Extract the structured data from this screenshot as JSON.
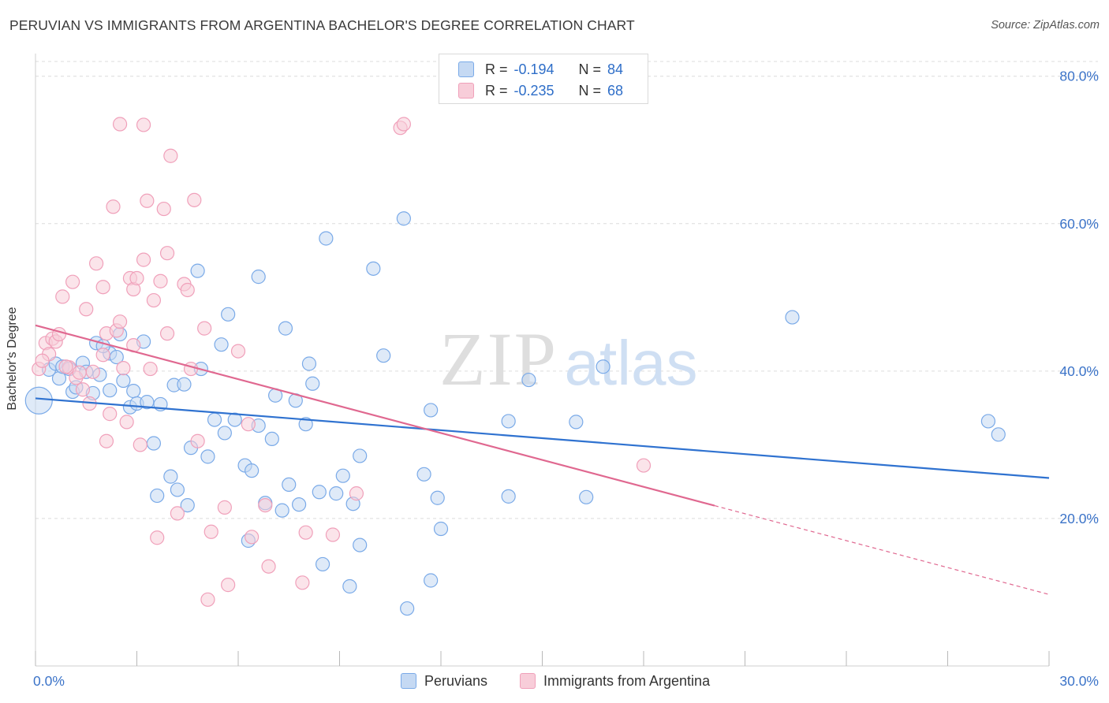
{
  "header": {
    "title": "PERUVIAN VS IMMIGRANTS FROM ARGENTINA BACHELOR'S DEGREE CORRELATION CHART",
    "source": "Source: ZipAtlas.com"
  },
  "watermark": {
    "zip": "ZIP",
    "atlas": "atlas"
  },
  "legend": {
    "rows": [
      {
        "r_label": "R =",
        "r_value": "-0.194",
        "n_label": "N =",
        "n_value": "84"
      },
      {
        "r_label": "R =",
        "r_value": "-0.235",
        "n_label": "N =",
        "n_value": "68"
      }
    ]
  },
  "chart_data": {
    "type": "scatter",
    "title": "PERUVIAN VS IMMIGRANTS FROM ARGENTINA BACHELOR'S DEGREE CORRELATION CHART",
    "xlabel": "",
    "ylabel": "Bachelor's Degree",
    "xlim": [
      0,
      30
    ],
    "ylim": [
      0,
      82
    ],
    "x_ticks": [
      0,
      3,
      6,
      9,
      12,
      15,
      18,
      21,
      24,
      27,
      30
    ],
    "x_tick_labels": [
      {
        "value": 0,
        "label": "0.0%"
      },
      {
        "value": 30,
        "label": "30.0%"
      }
    ],
    "y_ticks": [
      {
        "value": 20,
        "label": "20.0%"
      },
      {
        "value": 40,
        "label": "40.0%"
      },
      {
        "value": 60,
        "label": "60.0%"
      },
      {
        "value": 80,
        "label": "80.0%"
      }
    ],
    "grid": true,
    "series": [
      {
        "name": "Peruvians",
        "color": "#7aaae8",
        "fill": "#c5d9f3",
        "line_color": "#2f72d0",
        "trend": {
          "x": [
            0,
            30
          ],
          "y": [
            36.3,
            25.5
          ],
          "dashed_from": null
        },
        "points": [
          [
            0.1,
            36.0
          ],
          [
            0.4,
            40.2
          ],
          [
            0.6,
            41.0
          ],
          [
            0.7,
            39.0
          ],
          [
            0.8,
            40.6
          ],
          [
            1.1,
            37.2
          ],
          [
            1.2,
            37.8
          ],
          [
            1.4,
            41.1
          ],
          [
            1.5,
            39.9
          ],
          [
            1.7,
            37.0
          ],
          [
            1.8,
            43.8
          ],
          [
            1.9,
            39.5
          ],
          [
            2.2,
            42.4
          ],
          [
            2.2,
            37.4
          ],
          [
            2.4,
            41.9
          ],
          [
            2.5,
            45.0
          ],
          [
            2.6,
            38.7
          ],
          [
            2.8,
            35.1
          ],
          [
            2.9,
            37.3
          ],
          [
            3.0,
            35.6
          ],
          [
            3.2,
            44.0
          ],
          [
            3.3,
            35.8
          ],
          [
            3.5,
            30.2
          ],
          [
            3.7,
            35.5
          ],
          [
            4.0,
            25.7
          ],
          [
            3.6,
            23.1
          ],
          [
            4.1,
            38.1
          ],
          [
            4.2,
            23.9
          ],
          [
            4.4,
            38.2
          ],
          [
            4.5,
            21.8
          ],
          [
            4.6,
            29.6
          ],
          [
            4.8,
            53.6
          ],
          [
            4.9,
            40.3
          ],
          [
            5.1,
            28.4
          ],
          [
            5.3,
            33.4
          ],
          [
            5.5,
            43.6
          ],
          [
            5.6,
            31.6
          ],
          [
            5.7,
            47.7
          ],
          [
            5.9,
            33.4
          ],
          [
            6.2,
            27.2
          ],
          [
            6.4,
            26.5
          ],
          [
            6.3,
            17.0
          ],
          [
            6.6,
            32.6
          ],
          [
            6.6,
            52.8
          ],
          [
            6.8,
            22.1
          ],
          [
            7.0,
            30.8
          ],
          [
            7.1,
            36.7
          ],
          [
            7.3,
            21.1
          ],
          [
            7.4,
            45.8
          ],
          [
            7.5,
            24.6
          ],
          [
            7.7,
            36.0
          ],
          [
            7.8,
            21.9
          ],
          [
            8.0,
            32.8
          ],
          [
            8.1,
            41.0
          ],
          [
            8.2,
            38.3
          ],
          [
            8.4,
            23.6
          ],
          [
            8.5,
            13.8
          ],
          [
            8.6,
            58.0
          ],
          [
            8.9,
            23.4
          ],
          [
            9.1,
            25.8
          ],
          [
            9.3,
            10.8
          ],
          [
            9.4,
            22.0
          ],
          [
            9.6,
            28.5
          ],
          [
            9.6,
            16.4
          ],
          [
            10.0,
            53.9
          ],
          [
            10.3,
            42.1
          ],
          [
            10.9,
            60.7
          ],
          [
            11.0,
            7.8
          ],
          [
            11.5,
            26.0
          ],
          [
            11.7,
            11.6
          ],
          [
            11.7,
            34.7
          ],
          [
            11.9,
            22.8
          ],
          [
            12.0,
            18.6
          ],
          [
            14.0,
            33.2
          ],
          [
            14.0,
            23.0
          ],
          [
            14.6,
            38.8
          ],
          [
            16.0,
            33.1
          ],
          [
            16.3,
            22.9
          ],
          [
            16.8,
            40.6
          ],
          [
            22.4,
            47.3
          ],
          [
            28.2,
            33.2
          ],
          [
            28.5,
            31.4
          ],
          [
            1.0,
            40.3
          ],
          [
            2.0,
            43.4
          ]
        ]
      },
      {
        "name": "Immigrants from Argentina",
        "color": "#f0a0ba",
        "fill": "#f8cdd9",
        "line_color": "#e06890",
        "trend": {
          "x": [
            0,
            30
          ],
          "y": [
            46.2,
            9.7
          ],
          "dashed_from": 20.1
        },
        "points": [
          [
            0.1,
            40.3
          ],
          [
            0.3,
            43.8
          ],
          [
            0.4,
            42.3
          ],
          [
            0.5,
            44.4
          ],
          [
            0.6,
            44.0
          ],
          [
            0.7,
            45.0
          ],
          [
            0.8,
            50.1
          ],
          [
            1.0,
            40.5
          ],
          [
            1.1,
            52.1
          ],
          [
            1.2,
            39.1
          ],
          [
            1.4,
            37.5
          ],
          [
            1.5,
            48.4
          ],
          [
            1.6,
            35.6
          ],
          [
            1.7,
            39.9
          ],
          [
            1.8,
            54.6
          ],
          [
            2.0,
            42.2
          ],
          [
            2.0,
            51.4
          ],
          [
            2.1,
            45.1
          ],
          [
            2.1,
            30.5
          ],
          [
            2.2,
            34.2
          ],
          [
            2.3,
            62.3
          ],
          [
            2.4,
            45.5
          ],
          [
            2.5,
            46.7
          ],
          [
            2.5,
            73.5
          ],
          [
            2.6,
            40.4
          ],
          [
            2.7,
            33.1
          ],
          [
            2.8,
            52.6
          ],
          [
            2.9,
            43.5
          ],
          [
            2.9,
            51.1
          ],
          [
            3.0,
            52.6
          ],
          [
            3.1,
            30.0
          ],
          [
            3.2,
            73.4
          ],
          [
            3.2,
            55.1
          ],
          [
            3.3,
            63.1
          ],
          [
            3.4,
            40.3
          ],
          [
            3.5,
            49.6
          ],
          [
            3.6,
            17.4
          ],
          [
            3.7,
            52.2
          ],
          [
            3.8,
            62.0
          ],
          [
            3.9,
            45.1
          ],
          [
            3.9,
            56.0
          ],
          [
            4.0,
            69.2
          ],
          [
            4.2,
            20.7
          ],
          [
            4.4,
            51.8
          ],
          [
            4.5,
            51.0
          ],
          [
            4.6,
            40.3
          ],
          [
            4.7,
            63.2
          ],
          [
            4.8,
            30.5
          ],
          [
            5.0,
            45.8
          ],
          [
            5.1,
            9.0
          ],
          [
            5.2,
            18.2
          ],
          [
            5.6,
            21.5
          ],
          [
            5.7,
            11.0
          ],
          [
            6.0,
            42.7
          ],
          [
            6.3,
            32.8
          ],
          [
            6.4,
            17.5
          ],
          [
            6.8,
            21.8
          ],
          [
            6.9,
            13.5
          ],
          [
            7.9,
            11.3
          ],
          [
            8.0,
            18.1
          ],
          [
            8.8,
            17.8
          ],
          [
            9.5,
            23.4
          ],
          [
            10.8,
            73.0
          ],
          [
            10.9,
            73.5
          ],
          [
            18.0,
            27.2
          ],
          [
            0.2,
            41.4
          ],
          [
            1.3,
            39.8
          ],
          [
            0.9,
            40.6
          ]
        ]
      }
    ]
  }
}
